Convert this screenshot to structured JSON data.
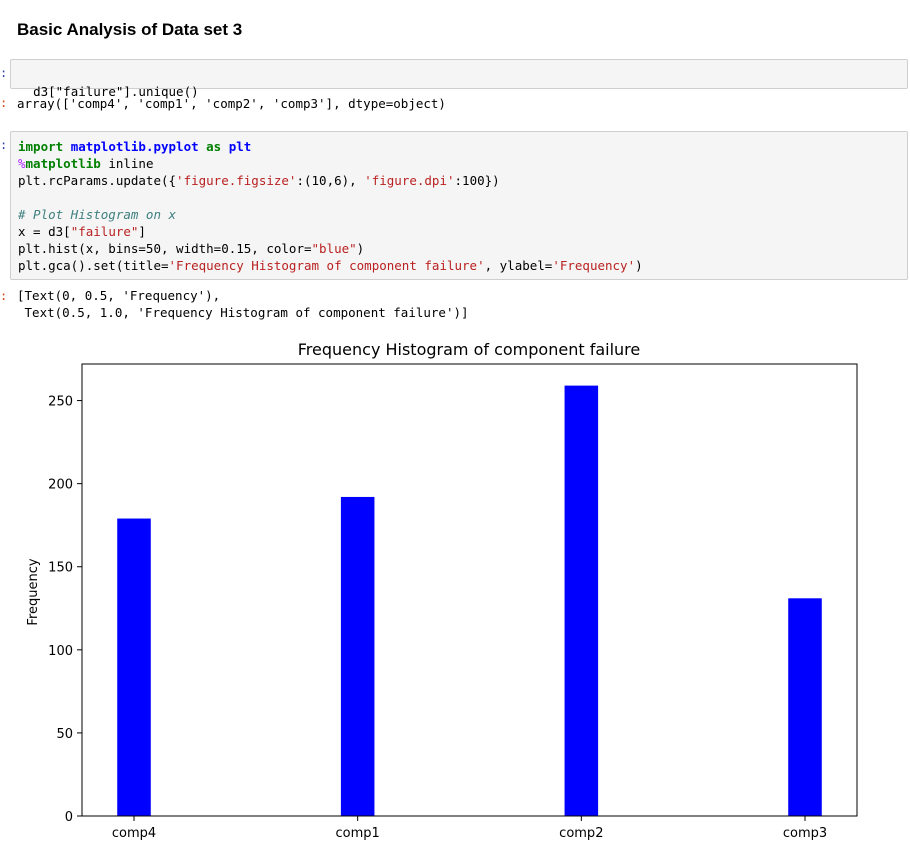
{
  "heading": "Basic Analysis of Data set 3",
  "cells": {
    "cell1_input": "d3[\"failure\"].unique()",
    "cell1_output": "array(['comp4', 'comp1', 'comp2', 'comp3'], dtype=object)",
    "cell2_lines": [
      "import matplotlib.pyplot as plt",
      "%matplotlib inline",
      "plt.rcParams.update({'figure.figsize':(10,6), 'figure.dpi':100})",
      "",
      "# Plot Histogram on x",
      "x = d3[\"failure\"]",
      "plt.hist(x, bins=50, width=0.15, color=\"blue\")",
      "plt.gca().set(title='Frequency Histogram of component failure', ylabel='Frequency')"
    ],
    "cell2_output_lines": [
      "[Text(0, 0.5, 'Frequency'),",
      " Text(0.5, 1.0, 'Frequency Histogram of component failure')]"
    ]
  },
  "prompts": {
    "symbol": ":"
  },
  "chart_data": {
    "type": "bar",
    "title": "Frequency Histogram of component failure",
    "xlabel": "",
    "ylabel": "Frequency",
    "categories": [
      "comp4",
      "comp1",
      "comp2",
      "comp3"
    ],
    "values": [
      179,
      192,
      259,
      131
    ],
    "ylim": [
      0,
      272
    ],
    "yticks": [
      0,
      50,
      100,
      150,
      200,
      250
    ],
    "bar_color": "#0000ff",
    "grid": false
  }
}
